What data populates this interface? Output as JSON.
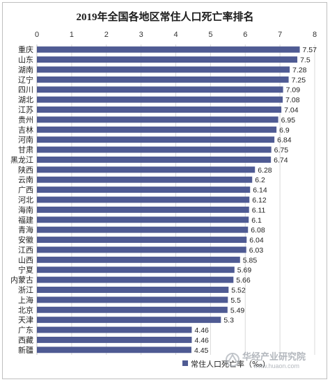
{
  "watermark": {
    "name": "华经产业研究院",
    "url": "www.huaon.com"
  },
  "colors": {
    "bar": "#4f5b93",
    "grid": "#d9d9d9",
    "axis": "#bfbfbf"
  },
  "chart_data": {
    "type": "bar",
    "orientation": "horizontal",
    "title": "2019年全国各地区常住人口死亡率排名",
    "xlim": [
      0,
      8
    ],
    "x_ticks": [
      0,
      1,
      2,
      3,
      4,
      5,
      6,
      7,
      8
    ],
    "x_axis_position": "top",
    "grid": true,
    "legend_position": "bottom",
    "categories": [
      "重庆",
      "山东",
      "湖南",
      "辽宁",
      "四川",
      "湖北",
      "江苏",
      "贵州",
      "吉林",
      "河南",
      "甘肃",
      "黑龙江",
      "陕西",
      "云南",
      "广西",
      "河北",
      "海南",
      "福建",
      "青海",
      "安徽",
      "江西",
      "山西",
      "宁夏",
      "内蒙古",
      "浙江",
      "上海",
      "北京",
      "天津",
      "广东",
      "西藏",
      "新疆"
    ],
    "series": [
      {
        "name": "常住人口死亡率（‰）",
        "values": [
          7.57,
          7.5,
          7.28,
          7.25,
          7.09,
          7.08,
          7.04,
          6.95,
          6.9,
          6.84,
          6.75,
          6.74,
          6.28,
          6.2,
          6.14,
          6.12,
          6.11,
          6.1,
          6.08,
          6.04,
          6.03,
          5.85,
          5.69,
          5.66,
          5.52,
          5.5,
          5.49,
          5.3,
          4.46,
          4.46,
          4.45
        ],
        "labels": [
          "7.57",
          "7.5",
          "7.28",
          "7.25",
          "7.09",
          "7.08",
          "7.04",
          "6.95",
          "6.9",
          "6.84",
          "6.75",
          "6.74",
          "6.28",
          "6.2",
          "6.14",
          "6.12",
          "6.11",
          "6.1",
          "6.08",
          "6.04",
          "6.03",
          "5.85",
          "5.69",
          "5.66",
          "5.52",
          "5.5",
          "5.49",
          "5.3",
          "4.46",
          "4.46",
          "4.45"
        ]
      }
    ]
  }
}
